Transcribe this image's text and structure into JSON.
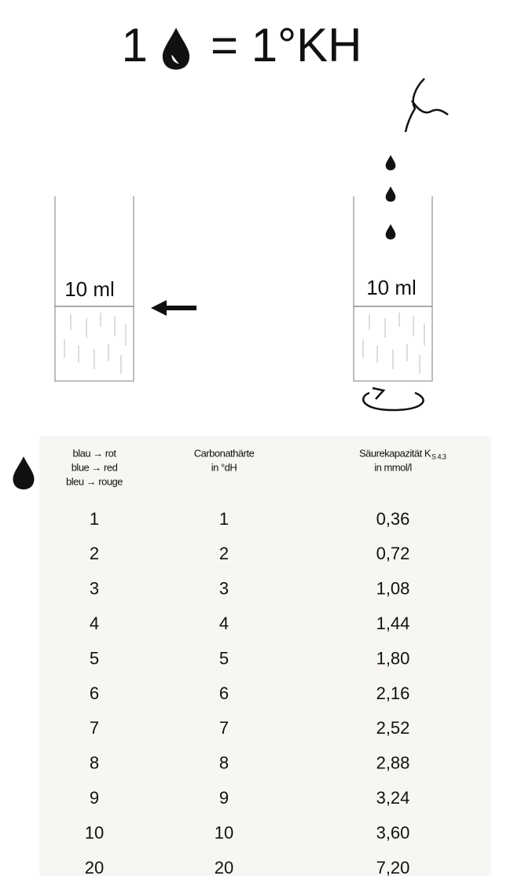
{
  "title": {
    "left": "1",
    "right": "= 1°KH"
  },
  "beakers": [
    {
      "label": "10 ml"
    },
    {
      "label": "10 ml"
    }
  ],
  "table": {
    "headers": [
      [
        "blau → rot",
        "blue → red",
        "bleu → rouge"
      ],
      [
        "Carbonathärte",
        "in °dH"
      ],
      [
        "Säurekapazität K",
        "S 4.3",
        "in mmol/l"
      ]
    ],
    "rows": [
      [
        "1",
        "1",
        "0,36"
      ],
      [
        "2",
        "2",
        "0,72"
      ],
      [
        "3",
        "3",
        "1,08"
      ],
      [
        "4",
        "4",
        "1,44"
      ],
      [
        "5",
        "5",
        "1,80"
      ],
      [
        "6",
        "6",
        "2,16"
      ],
      [
        "7",
        "7",
        "2,52"
      ],
      [
        "8",
        "8",
        "2,88"
      ],
      [
        "9",
        "9",
        "3,24"
      ],
      [
        "10",
        "10",
        "3,60"
      ],
      [
        "20",
        "20",
        "7,20"
      ]
    ]
  }
}
